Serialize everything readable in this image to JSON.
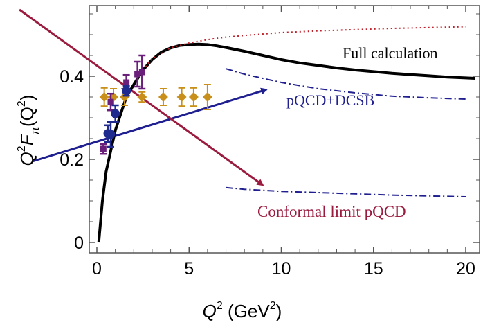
{
  "chart_data": {
    "type": "line",
    "xlabel": {
      "main": "Q",
      "sup": "2",
      "rest": " (GeV",
      "sup2": "2",
      "close": ")"
    },
    "ylabel": {
      "q": "Q",
      "sup": "2",
      "f": "F",
      "sub": "π",
      "open": "(Q",
      "sup2": "2",
      "close": ")"
    },
    "xlim": [
      0,
      20.5
    ],
    "ylim": [
      -0.02,
      0.56
    ],
    "xticks": [
      0,
      5,
      10,
      15,
      20
    ],
    "yticks": [
      0,
      0.2,
      0.4
    ],
    "xtick_labels": [
      "0",
      "5",
      "10",
      "15",
      "20"
    ],
    "ytick_labels": [
      "0",
      "0.2",
      "0.4"
    ],
    "grid": false,
    "colors": {
      "full": "#000000",
      "conformal": "#9b1b3f",
      "pqcd": "#1f1f8f",
      "dotted": "#c0202a",
      "data_purple": "#6a1f7a",
      "data_gold": "#c8901a",
      "data_blue": "#1f2a8f"
    },
    "series": [
      {
        "kind": "full",
        "x": [
          0.1,
          0.3,
          0.5,
          0.8,
          1.0,
          1.3,
          1.6,
          2.0,
          2.5,
          3.0,
          3.5,
          4.0,
          4.5,
          5.0,
          5.5,
          6.0,
          6.5,
          7.0,
          8.0,
          9.0,
          10.0,
          11.0,
          12.0,
          13.0,
          14.0,
          15.0,
          16.0,
          17.0,
          18.0,
          19.0,
          20.0,
          20.5
        ],
        "y": [
          0.0,
          0.1,
          0.17,
          0.23,
          0.27,
          0.31,
          0.35,
          0.38,
          0.415,
          0.44,
          0.458,
          0.468,
          0.474,
          0.476,
          0.477,
          0.476,
          0.473,
          0.469,
          0.46,
          0.45,
          0.44,
          0.432,
          0.426,
          0.42,
          0.415,
          0.411,
          0.407,
          0.404,
          0.401,
          0.398,
          0.396,
          0.395
        ]
      },
      {
        "kind": "dotted",
        "x": [
          2.5,
          3.0,
          4.0,
          5.0,
          6.0,
          7.0,
          8.0,
          10.0,
          12.0,
          14.0,
          16.0,
          18.0,
          20.0
        ],
        "y": [
          0.415,
          0.442,
          0.468,
          0.48,
          0.488,
          0.494,
          0.498,
          0.505,
          0.509,
          0.512,
          0.515,
          0.517,
          0.519
        ]
      },
      {
        "kind": "pqcd",
        "x": [
          7.0,
          8.0,
          10.0,
          12.0,
          14.0,
          16.0,
          18.0,
          20.0
        ],
        "y": [
          0.418,
          0.405,
          0.385,
          0.37,
          0.36,
          0.352,
          0.348,
          0.345
        ]
      },
      {
        "kind": "conformal",
        "x": [
          7.0,
          8.0,
          10.0,
          12.0,
          14.0,
          16.0,
          18.0,
          20.0
        ],
        "y": [
          0.132,
          0.128,
          0.123,
          0.12,
          0.117,
          0.114,
          0.112,
          0.11
        ]
      }
    ],
    "data_purple": [
      {
        "x": 0.35,
        "y": 0.225,
        "err": 0.012
      },
      {
        "x": 0.6,
        "y": 0.262,
        "err": 0.02
      },
      {
        "x": 0.75,
        "y": 0.338,
        "err": 0.02
      },
      {
        "x": 1.6,
        "y": 0.385,
        "err": 0.018
      },
      {
        "x": 2.2,
        "y": 0.405,
        "err": 0.03
      },
      {
        "x": 2.45,
        "y": 0.41,
        "err": 0.04
      }
    ],
    "data_gold": [
      {
        "x": 0.4,
        "y": 0.35,
        "err": 0.022
      },
      {
        "x": 0.9,
        "y": 0.35,
        "err": 0.02
      },
      {
        "x": 1.5,
        "y": 0.35,
        "err": 0.02
      },
      {
        "x": 2.45,
        "y": 0.35,
        "err": 0.012
      },
      {
        "x": 3.6,
        "y": 0.35,
        "err": 0.02
      },
      {
        "x": 4.6,
        "y": 0.35,
        "err": 0.022
      },
      {
        "x": 5.25,
        "y": 0.35,
        "err": 0.022
      },
      {
        "x": 6.0,
        "y": 0.35,
        "err": 0.03
      }
    ],
    "data_blue": [
      {
        "x": 0.6,
        "y": 0.262,
        "err": 0.02
      },
      {
        "x": 0.75,
        "y": 0.26,
        "err": 0.03
      },
      {
        "x": 1.0,
        "y": 0.31,
        "err": 0.02
      },
      {
        "x": 1.6,
        "y": 0.365,
        "err": 0.012
      }
    ],
    "annotations": [
      {
        "text": "Full calculation",
        "color": "#000000"
      },
      {
        "text": "pQCD+DCSB",
        "color": "#1f1f8f"
      },
      {
        "text": "Conformal limit pQCD",
        "color": "#9b1b3f"
      }
    ],
    "arrows": [
      {
        "color": "#1f1f8f",
        "from": [
          -3.5,
          0.195
        ],
        "to": [
          9.2,
          0.368
        ]
      },
      {
        "color": "#9b1b3f",
        "from": [
          -4.2,
          0.56
        ],
        "to": [
          9.0,
          0.138
        ]
      }
    ]
  }
}
